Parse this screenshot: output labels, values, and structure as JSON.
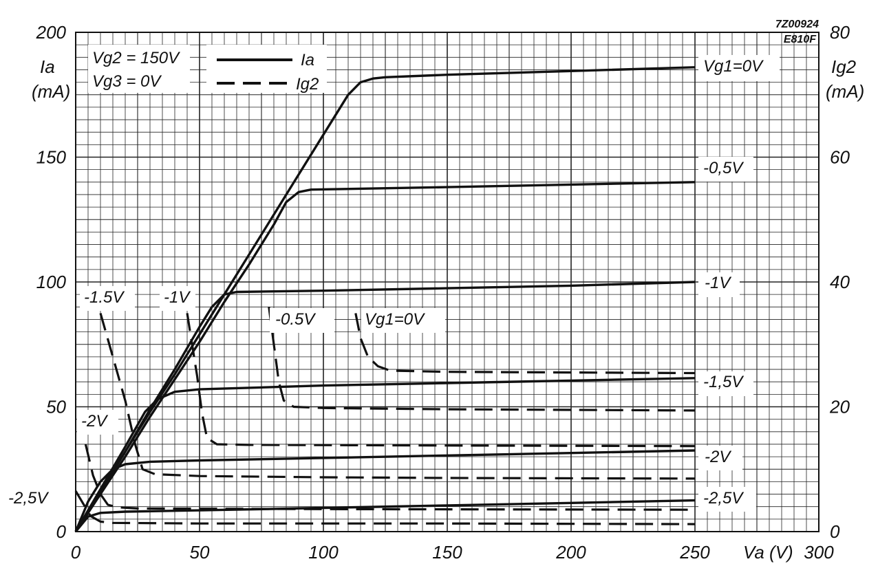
{
  "chart_data": {
    "type": "line",
    "ref_number": "7Z00924",
    "tube_type": "E810F",
    "x_axis": {
      "label": "Va (V)",
      "range": [
        0,
        300
      ],
      "ticks": [
        0,
        50,
        100,
        150,
        200,
        250,
        300
      ],
      "tick_labels": [
        "0",
        "50",
        "100",
        "150",
        "200",
        "250",
        "300"
      ]
    },
    "y_axis_left": {
      "label_symbol": "Ia",
      "label_unit": "(mA)",
      "range": [
        0,
        200
      ],
      "ticks": [
        0,
        50,
        100,
        150,
        200
      ],
      "tick_labels": [
        "0",
        "50",
        "100",
        "150",
        "200"
      ]
    },
    "y_axis_right": {
      "label_symbol": "Ig2",
      "label_unit": "(mA)",
      "range": [
        0,
        80
      ],
      "ticks": [
        0,
        20,
        40,
        60,
        80
      ],
      "tick_labels": [
        "0",
        "20",
        "40",
        "60",
        "80"
      ]
    },
    "grid": true,
    "conditions": [
      "Vg2 = 150V",
      "Vg3 = 0V"
    ],
    "legend": [
      {
        "label": "Ia",
        "style": "solid"
      },
      {
        "label": "Ig2",
        "style": "dashed"
      }
    ],
    "series": [
      {
        "name": "Ia, Vg1 = 0V",
        "axis": "left",
        "style": "solid",
        "points": [
          [
            0,
            0
          ],
          [
            10,
            16
          ],
          [
            20,
            32
          ],
          [
            30,
            48
          ],
          [
            40,
            63
          ],
          [
            50,
            79
          ],
          [
            60,
            95
          ],
          [
            70,
            111
          ],
          [
            80,
            127
          ],
          [
            90,
            143
          ],
          [
            100,
            159
          ],
          [
            105,
            167
          ],
          [
            110,
            175
          ],
          [
            115,
            180
          ],
          [
            120,
            181.5
          ],
          [
            125,
            182
          ],
          [
            150,
            183
          ],
          [
            200,
            184.5
          ],
          [
            250,
            186
          ]
        ]
      },
      {
        "name": "Ia, Vg1 = -0.5V",
        "axis": "left",
        "style": "solid",
        "points": [
          [
            0,
            0
          ],
          [
            10,
            15
          ],
          [
            20,
            30
          ],
          [
            30,
            46
          ],
          [
            40,
            61
          ],
          [
            50,
            76
          ],
          [
            60,
            92
          ],
          [
            70,
            107
          ],
          [
            80,
            123
          ],
          [
            85,
            132
          ],
          [
            90,
            136
          ],
          [
            95,
            137
          ],
          [
            150,
            138
          ],
          [
            200,
            139
          ],
          [
            250,
            140
          ]
        ]
      },
      {
        "name": "Ia, Vg1 = -1V",
        "axis": "left",
        "style": "solid",
        "points": [
          [
            0,
            0
          ],
          [
            10,
            16
          ],
          [
            20,
            32
          ],
          [
            30,
            49
          ],
          [
            40,
            65
          ],
          [
            50,
            82
          ],
          [
            55,
            90
          ],
          [
            60,
            95
          ],
          [
            65,
            96
          ],
          [
            100,
            96.5
          ],
          [
            150,
            97.5
          ],
          [
            200,
            98.5
          ],
          [
            250,
            100
          ]
        ]
      },
      {
        "name": "Ia, Vg1 = -1.5V",
        "axis": "left",
        "style": "solid",
        "points": [
          [
            0,
            0
          ],
          [
            10,
            17
          ],
          [
            20,
            34
          ],
          [
            28,
            48
          ],
          [
            33,
            53
          ],
          [
            40,
            56
          ],
          [
            50,
            57
          ],
          [
            100,
            58.5
          ],
          [
            150,
            59.5
          ],
          [
            200,
            60.5
          ],
          [
            250,
            61.5
          ]
        ]
      },
      {
        "name": "Ia, Vg1 = -2V",
        "axis": "left",
        "style": "solid",
        "points": [
          [
            0,
            0
          ],
          [
            5,
            12
          ],
          [
            10,
            20
          ],
          [
            15,
            25
          ],
          [
            20,
            27
          ],
          [
            30,
            28
          ],
          [
            50,
            28.5
          ],
          [
            100,
            29.5
          ],
          [
            150,
            30.5
          ],
          [
            200,
            31.5
          ],
          [
            250,
            32.5
          ]
        ]
      },
      {
        "name": "Ia, Vg1 = -2.5V",
        "axis": "left",
        "style": "solid",
        "points": [
          [
            0,
            0
          ],
          [
            5,
            6
          ],
          [
            10,
            7.5
          ],
          [
            20,
            8
          ],
          [
            50,
            8.5
          ],
          [
            100,
            9.5
          ],
          [
            150,
            10.5
          ],
          [
            200,
            11.5
          ],
          [
            250,
            12.5
          ]
        ]
      },
      {
        "name": "Ig2, Vg1 = 0V",
        "axis": "right",
        "style": "dashed",
        "points": [
          [
            113,
            35
          ],
          [
            115,
            31
          ],
          [
            118,
            28
          ],
          [
            122,
            26.5
          ],
          [
            127,
            25.8
          ],
          [
            150,
            25.6
          ],
          [
            200,
            25.5
          ],
          [
            250,
            25.4
          ]
        ]
      },
      {
        "name": "Ig2, Vg1 = -0.5V",
        "axis": "right",
        "style": "dashed",
        "points": [
          [
            78,
            36
          ],
          [
            80,
            30
          ],
          [
            82,
            24
          ],
          [
            84,
            21
          ],
          [
            88,
            20
          ],
          [
            100,
            19.8
          ],
          [
            150,
            19.6
          ],
          [
            200,
            19.5
          ],
          [
            250,
            19.4
          ]
        ]
      },
      {
        "name": "Ig2, Vg1 = -1V",
        "axis": "right",
        "style": "dashed",
        "points": [
          [
            45,
            35
          ],
          [
            47,
            30
          ],
          [
            49,
            25
          ],
          [
            51,
            19
          ],
          [
            53,
            15
          ],
          [
            57,
            14
          ],
          [
            70,
            13.9
          ],
          [
            150,
            13.8
          ],
          [
            250,
            13.7
          ]
        ]
      },
      {
        "name": "Ig2, Vg1 = -1.5V",
        "axis": "right",
        "style": "dashed",
        "points": [
          [
            10,
            35
          ],
          [
            15,
            28
          ],
          [
            20,
            21
          ],
          [
            24,
            14
          ],
          [
            27,
            10
          ],
          [
            32,
            9.2
          ],
          [
            50,
            8.9
          ],
          [
            100,
            8.7
          ],
          [
            150,
            8.6
          ],
          [
            250,
            8.5
          ]
        ]
      },
      {
        "name": "Ig2, Vg1 = -2V",
        "axis": "right",
        "style": "dashed",
        "points": [
          [
            4,
            14
          ],
          [
            7,
            9
          ],
          [
            10,
            6
          ],
          [
            13,
            4.3
          ],
          [
            17,
            3.9
          ],
          [
            25,
            3.7
          ],
          [
            100,
            3.6
          ],
          [
            250,
            3.5
          ]
        ]
      },
      {
        "name": "Ig2, Vg1 = -2.5V",
        "axis": "right",
        "style": "dashed",
        "points": [
          [
            0,
            6.5
          ],
          [
            3,
            4.5
          ],
          [
            6,
            2.5
          ],
          [
            10,
            1.6
          ],
          [
            15,
            1.4
          ],
          [
            50,
            1.3
          ],
          [
            150,
            1.3
          ],
          [
            250,
            1.2
          ]
        ]
      }
    ],
    "annotations": [
      {
        "text": "Vg1=0V",
        "series": "Ia, Vg1 = 0V"
      },
      {
        "text": "-0,5V",
        "series": "Ia, Vg1 = -0.5V"
      },
      {
        "text": "-1V",
        "series": "Ia, Vg1 = -1V"
      },
      {
        "text": "-1,5V",
        "series": "Ia, Vg1 = -1.5V"
      },
      {
        "text": "-2V",
        "series": "Ia, Vg1 = -2V"
      },
      {
        "text": "-2,5V",
        "series": "Ia, Vg1 = -2.5V"
      },
      {
        "text": "Vg1=0V",
        "series": "Ig2, Vg1 = 0V"
      },
      {
        "text": "-0.5V",
        "series": "Ig2, Vg1 = -0.5V"
      },
      {
        "text": "-1V",
        "series": "Ig2, Vg1 = -1V"
      },
      {
        "text": "-1.5V",
        "series": "Ig2, Vg1 = -1.5V"
      },
      {
        "text": "-2V",
        "series": "Ig2, Vg1 = -2V"
      },
      {
        "text": "-2,5V",
        "series": "Ig2, Vg1 = -2.5V"
      }
    ]
  }
}
